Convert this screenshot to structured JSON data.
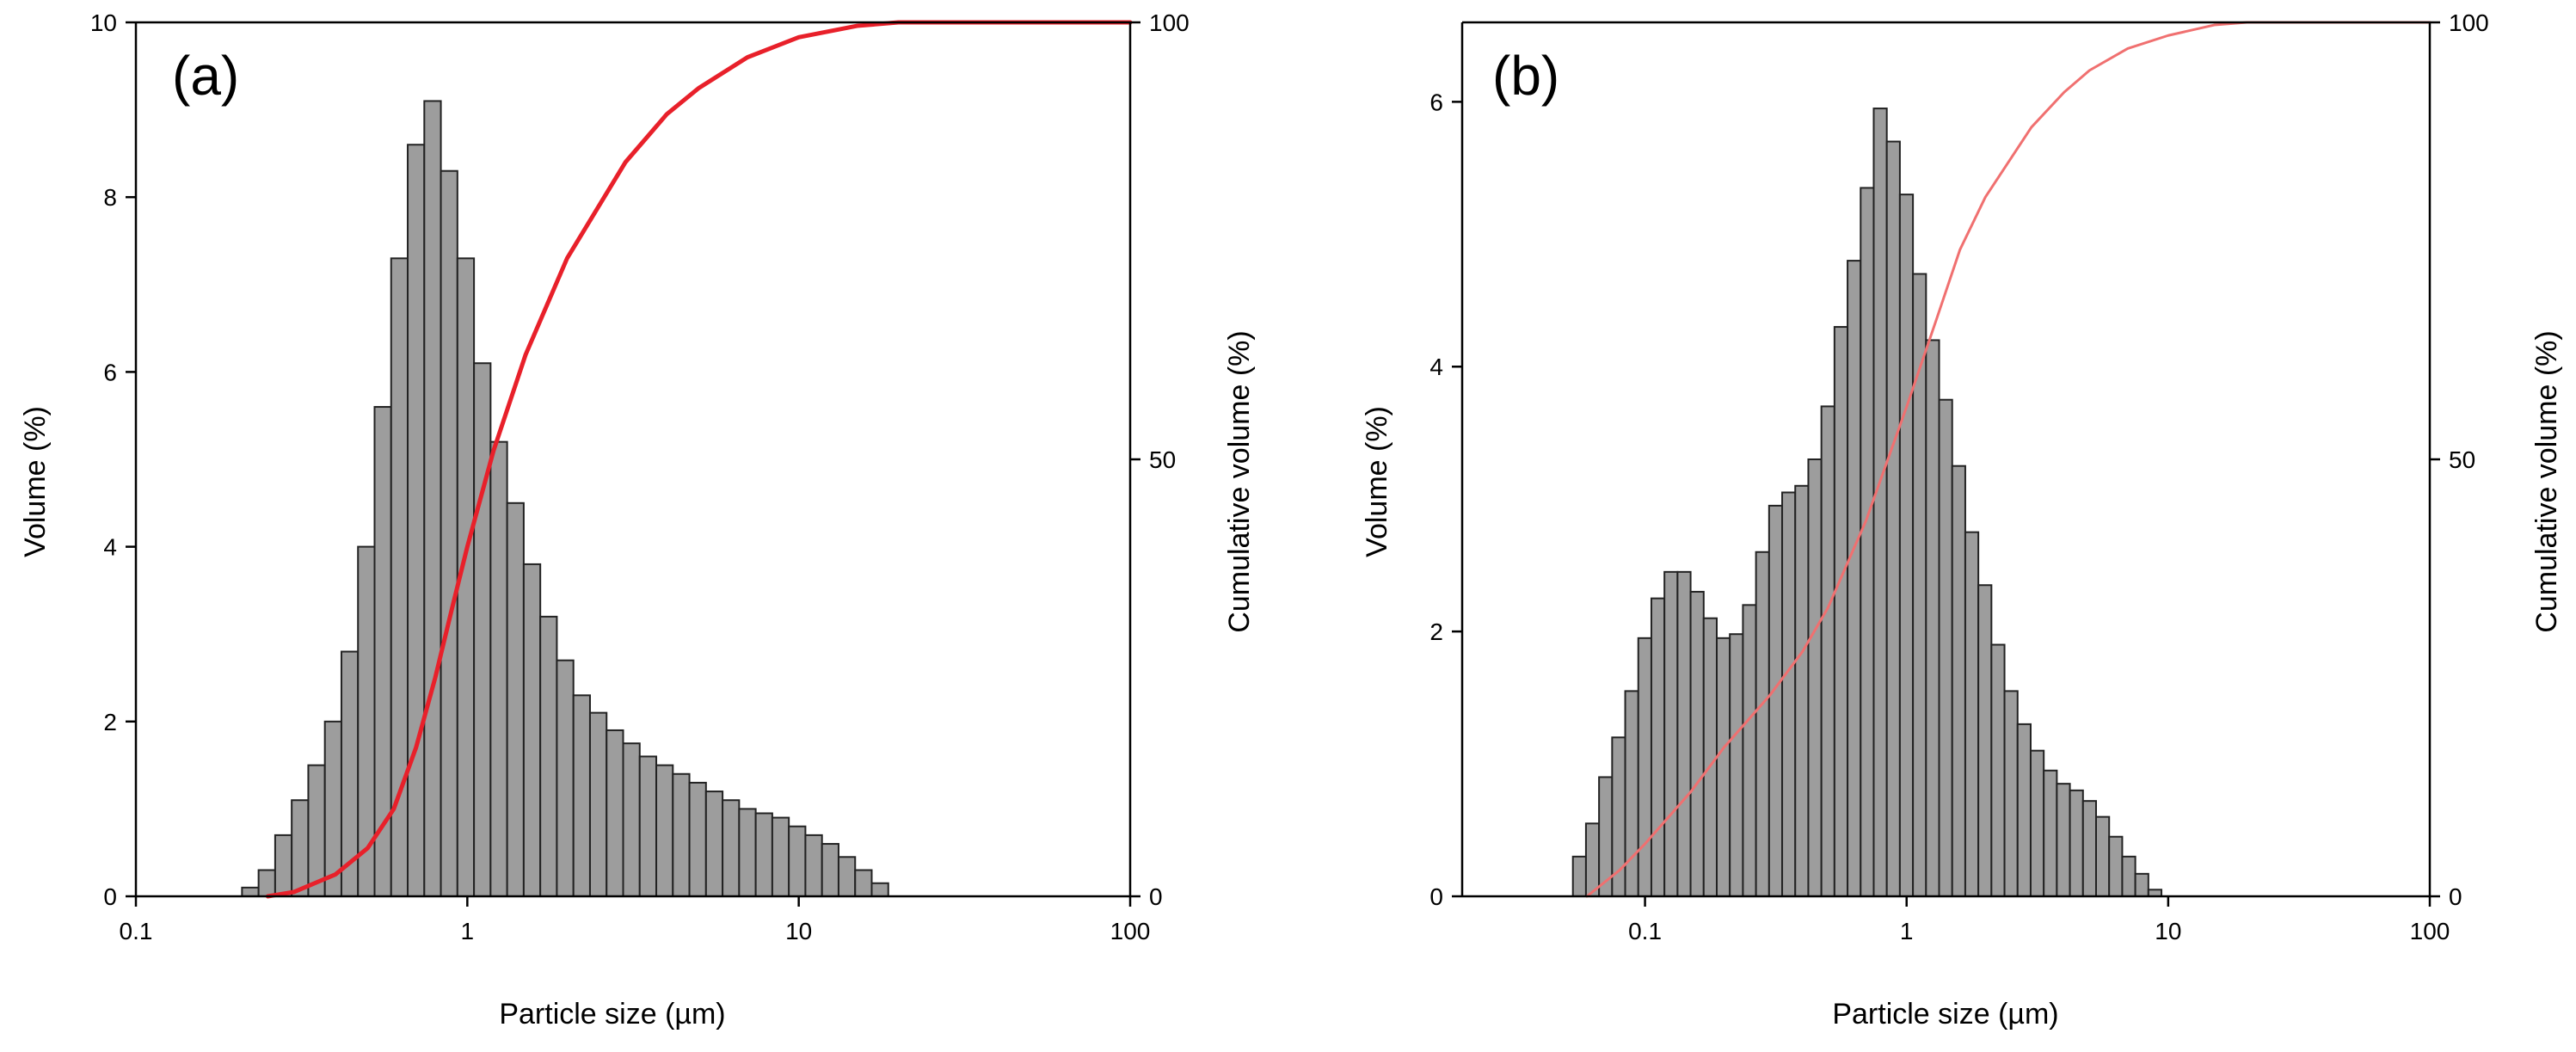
{
  "chart_data": [
    {
      "type": "bar",
      "panel_label": "(a)",
      "title": "",
      "xlabel": "Particle size (µm)",
      "ylabel": "Volume (%)",
      "y2label": "Cumulative volume (%)",
      "xscale": "log",
      "xlim": [
        0.1,
        100
      ],
      "ylim": [
        0,
        10
      ],
      "y2lim": [
        0,
        100
      ],
      "xticks": [
        0.1,
        1,
        10,
        100
      ],
      "xtick_labels": [
        "0.1",
        "1",
        "10",
        "100"
      ],
      "yticks": [
        0,
        2,
        4,
        6,
        8,
        10
      ],
      "ytick_labels": [
        "0",
        "2",
        "4",
        "6",
        "8",
        "10"
      ],
      "y2ticks": [
        0,
        50,
        100
      ],
      "y2tick_labels": [
        "0",
        "50",
        "100"
      ],
      "bins_per_decade": 20,
      "bar_start": 0.209,
      "values": [
        0.1,
        0.3,
        0.7,
        1.1,
        1.5,
        2.0,
        2.8,
        4.0,
        5.6,
        7.3,
        8.6,
        9.1,
        8.3,
        7.3,
        6.1,
        5.2,
        4.5,
        3.8,
        3.2,
        2.7,
        2.3,
        2.1,
        1.9,
        1.75,
        1.6,
        1.5,
        1.4,
        1.3,
        1.2,
        1.1,
        1.0,
        0.95,
        0.9,
        0.8,
        0.7,
        0.6,
        0.45,
        0.3,
        0.15
      ],
      "bar_color": "#9d9d9d",
      "cumulative": {
        "name": "Cumulative volume",
        "x": [
          0.25,
          0.3,
          0.4,
          0.5,
          0.6,
          0.7,
          0.8,
          0.9,
          1.0,
          1.2,
          1.5,
          2.0,
          3.0,
          4.0,
          5.0,
          7.0,
          10,
          15,
          20,
          100
        ],
        "y": [
          0,
          0.5,
          2.5,
          5.5,
          10,
          17,
          25,
          33,
          40,
          51,
          62,
          73,
          84,
          89.5,
          92.5,
          96,
          98.3,
          99.6,
          100,
          100
        ],
        "color": "#e8202a"
      }
    },
    {
      "type": "bar",
      "panel_label": "(b)",
      "title": "",
      "xlabel": "Particle size (µm)",
      "ylabel": "Volume (%)",
      "y2label": "Cumulative volume (%)",
      "xscale": "log",
      "xlim": [
        0.02,
        100
      ],
      "ylim": [
        0,
        6.6
      ],
      "y2lim": [
        0,
        100
      ],
      "xticks": [
        0.1,
        1,
        10,
        100
      ],
      "xtick_labels": [
        "0.1",
        "1",
        "10",
        "100"
      ],
      "yticks": [
        0,
        2,
        4,
        6
      ],
      "ytick_labels": [
        "0",
        "2",
        "4",
        "6"
      ],
      "y2ticks": [
        0,
        50,
        100
      ],
      "y2tick_labels": [
        "0",
        "50",
        "100"
      ],
      "bins_per_decade": 20,
      "bar_start": 0.053,
      "values": [
        0.3,
        0.55,
        0.9,
        1.2,
        1.55,
        1.95,
        2.25,
        2.45,
        2.45,
        2.3,
        2.1,
        1.95,
        1.98,
        2.2,
        2.6,
        2.95,
        3.05,
        3.1,
        3.3,
        3.7,
        4.3,
        4.8,
        5.35,
        5.95,
        5.7,
        5.3,
        4.7,
        4.2,
        3.75,
        3.25,
        2.75,
        2.35,
        1.9,
        1.55,
        1.3,
        1.1,
        0.95,
        0.85,
        0.8,
        0.72,
        0.6,
        0.45,
        0.3,
        0.17,
        0.05
      ],
      "bar_color": "#9d9d9d",
      "cumulative": {
        "name": "Cumulative volume",
        "x": [
          0.06,
          0.08,
          0.1,
          0.15,
          0.2,
          0.3,
          0.4,
          0.5,
          0.7,
          1.0,
          1.3,
          1.6,
          2.0,
          3.0,
          4.0,
          5.0,
          7.0,
          10,
          15,
          20,
          100
        ],
        "y": [
          0,
          3,
          6,
          12,
          17,
          23,
          28,
          33,
          43,
          56,
          66,
          74,
          80,
          88,
          92,
          94.5,
          97,
          98.5,
          99.7,
          100,
          100
        ],
        "color": "#f07070"
      }
    }
  ]
}
